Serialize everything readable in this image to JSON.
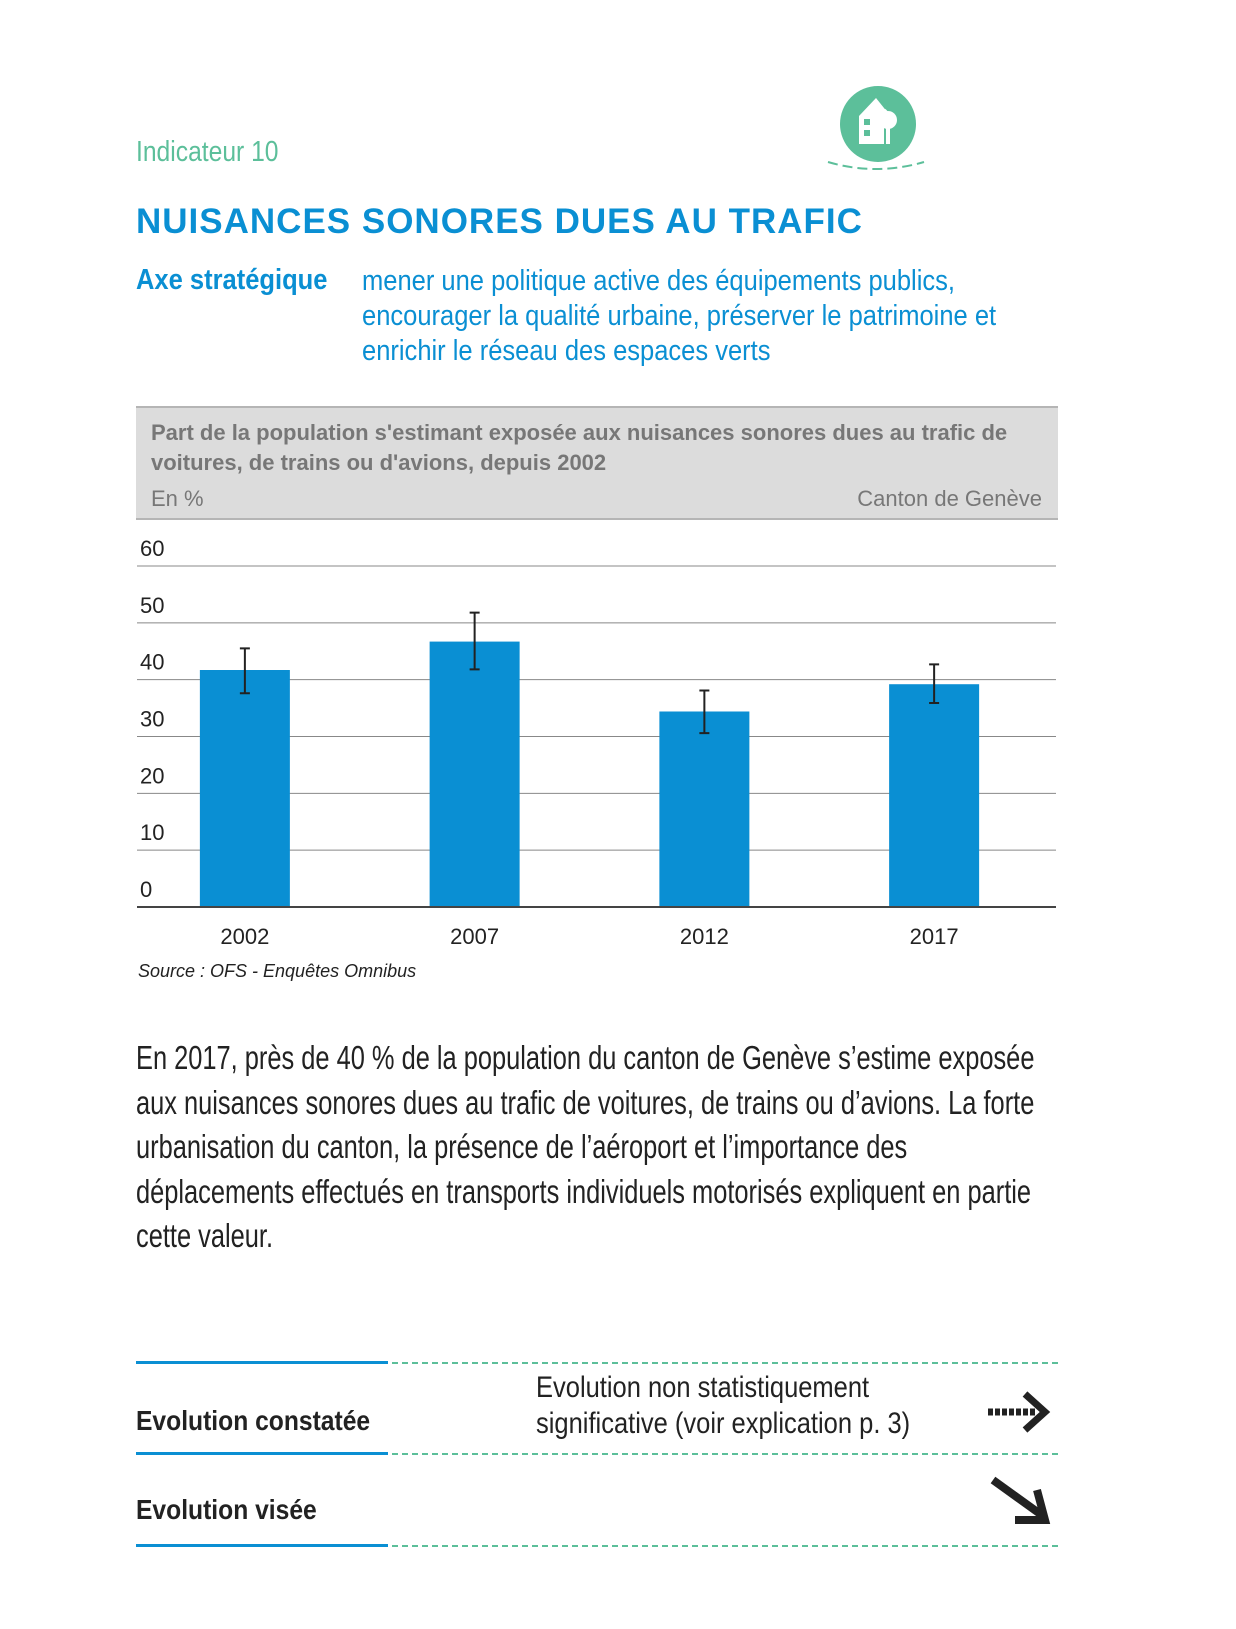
{
  "header": {
    "indicator": "Indicateur 10",
    "title": "NUISANCES SONORES DUES AU TRAFIC",
    "axe_label": "Axe stratégique",
    "axe_text": "mener une politique active des équipements publics, encourager la qualité urbaine, préserver le patrimoine et enrichir le réseau des espaces verts",
    "icon": "house-tree-icon"
  },
  "colors": {
    "accent": "#0a8fd3",
    "green": "#5cbf9a",
    "bar": "#0a8fd3"
  },
  "chart_data": {
    "type": "bar",
    "title": "Part de la population s'estimant exposée aux nuisances sonores dues au trafic de voitures, de trains ou d'avions, depuis 2002",
    "ylabel": "En %",
    "region": "Canton de Genève",
    "categories": [
      "2002",
      "2007",
      "2012",
      "2017"
    ],
    "values": [
      41.7,
      46.7,
      34.4,
      39.2
    ],
    "error_low": [
      37.6,
      41.8,
      30.6,
      35.9
    ],
    "error_high": [
      45.5,
      51.8,
      38.1,
      42.7
    ],
    "ylim": [
      0,
      60
    ],
    "yticks": [
      "0",
      "10",
      "20",
      "30",
      "40",
      "50",
      "60"
    ],
    "grid": true,
    "source": "Source : OFS - Enquêtes Omnibus"
  },
  "body_text": "En 2017, près de 40 % de la population du canton de Genève s’estime exposée aux nuisances sonores dues au trafic de voitures, de trains ou d’avions. La forte urbanisation du canton, la présence de l’aéroport et l’importance des déplacements effectués en transports individuels motorisés expliquent en partie cette valeur.",
  "evolution": {
    "observed_label": "Evolution constatée",
    "observed_text": "Evolution non statistiquement significative (voir explication p. 3)",
    "observed_icon": "dotted-arrow-right-icon",
    "target_label": "Evolution visée",
    "target_icon": "arrow-down-right-icon"
  }
}
